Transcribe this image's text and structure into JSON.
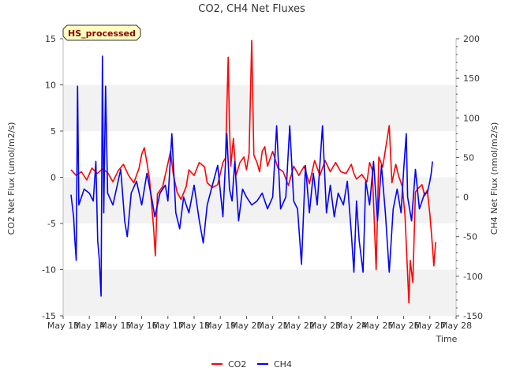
{
  "chart_data": {
    "type": "line",
    "title": "CO2, CH4 Net Fluxes",
    "badge": "HS_processed",
    "xlabel": "Time",
    "ylabel_left": "CO2 Net Flux (umol/m2/s)",
    "ylabel_right": "CH4 Net Flux (nmol/m2/s)",
    "xlim": [
      13,
      28
    ],
    "ylim_left": [
      -15,
      15
    ],
    "ylim_right": [
      -150,
      200
    ],
    "x_ticks": [
      13,
      14,
      15,
      16,
      17,
      18,
      19,
      20,
      21,
      22,
      23,
      24,
      25,
      26,
      27,
      28
    ],
    "x_tick_labels": [
      "May 13",
      "May 14",
      "May 15",
      "May 16",
      "May 17",
      "May 18",
      "May 19",
      "May 20",
      "May 21",
      "May 22",
      "May 23",
      "May 24",
      "May 25",
      "May 26",
      "May 27",
      "May 28"
    ],
    "y_ticks_left": [
      -15,
      -10,
      -5,
      0,
      5,
      10,
      15
    ],
    "y_tick_labels_left": [
      "-15",
      "-10",
      "-5",
      "0",
      "5",
      "10",
      "15"
    ],
    "y_ticks_right": [
      -150,
      -100,
      -50,
      0,
      50,
      100,
      150,
      200
    ],
    "y_tick_labels_right": [
      "-150",
      "-100",
      "-50",
      "0",
      "50",
      "100",
      "150",
      "200"
    ],
    "legend": [
      "CO2",
      "CH4"
    ],
    "series": [
      {
        "name": "CO2",
        "axis": "left",
        "color": "#ff0000",
        "points": [
          [
            13.3,
            0.8
          ],
          [
            13.5,
            0.2
          ],
          [
            13.7,
            0.6
          ],
          [
            13.9,
            -0.3
          ],
          [
            14.1,
            1.0
          ],
          [
            14.3,
            0.4
          ],
          [
            14.5,
            0.9
          ],
          [
            14.7,
            0.5
          ],
          [
            14.9,
            -0.5
          ],
          [
            15.1,
            0.7
          ],
          [
            15.3,
            1.4
          ],
          [
            15.5,
            0.2
          ],
          [
            15.7,
            -0.6
          ],
          [
            15.9,
            1.0
          ],
          [
            16.0,
            2.5
          ],
          [
            16.1,
            3.2
          ],
          [
            16.2,
            1.6
          ],
          [
            16.3,
            -0.3
          ],
          [
            16.45,
            -5.3
          ],
          [
            16.52,
            -8.5
          ],
          [
            16.6,
            -1.8
          ],
          [
            16.8,
            -1.0
          ],
          [
            17.0,
            1.5
          ],
          [
            17.1,
            2.8
          ],
          [
            17.2,
            0.4
          ],
          [
            17.35,
            -1.6
          ],
          [
            17.5,
            -2.4
          ],
          [
            17.7,
            -1.0
          ],
          [
            17.8,
            0.8
          ],
          [
            18.0,
            0.2
          ],
          [
            18.2,
            1.6
          ],
          [
            18.4,
            1.1
          ],
          [
            18.5,
            -0.6
          ],
          [
            18.7,
            -1.1
          ],
          [
            18.9,
            -0.8
          ],
          [
            19.0,
            0.4
          ],
          [
            19.1,
            1.6
          ],
          [
            19.2,
            2.1
          ],
          [
            19.3,
            13.0
          ],
          [
            19.35,
            5.5
          ],
          [
            19.4,
            1.2
          ],
          [
            19.5,
            4.2
          ],
          [
            19.6,
            0.2
          ],
          [
            19.75,
            1.6
          ],
          [
            19.9,
            2.2
          ],
          [
            20.0,
            0.8
          ],
          [
            20.1,
            2.6
          ],
          [
            20.2,
            14.8
          ],
          [
            20.28,
            2.4
          ],
          [
            20.4,
            1.6
          ],
          [
            20.5,
            0.6
          ],
          [
            20.6,
            2.8
          ],
          [
            20.7,
            3.3
          ],
          [
            20.8,
            1.2
          ],
          [
            21.0,
            2.8
          ],
          [
            21.2,
            1.0
          ],
          [
            21.4,
            0.6
          ],
          [
            21.6,
            -0.9
          ],
          [
            21.8,
            1.2
          ],
          [
            22.0,
            0.2
          ],
          [
            22.2,
            1.2
          ],
          [
            22.4,
            -0.7
          ],
          [
            22.6,
            1.8
          ],
          [
            22.8,
            0.2
          ],
          [
            23.0,
            1.8
          ],
          [
            23.2,
            0.6
          ],
          [
            23.4,
            1.6
          ],
          [
            23.6,
            0.6
          ],
          [
            23.8,
            0.4
          ],
          [
            24.0,
            1.4
          ],
          [
            24.1,
            0.4
          ],
          [
            24.2,
            -0.2
          ],
          [
            24.4,
            0.3
          ],
          [
            24.6,
            -0.5
          ],
          [
            24.7,
            1.6
          ],
          [
            24.8,
            0.8
          ],
          [
            24.95,
            -10.0
          ],
          [
            25.05,
            2.2
          ],
          [
            25.2,
            1.1
          ],
          [
            25.35,
            3.8
          ],
          [
            25.45,
            5.6
          ],
          [
            25.55,
            -0.6
          ],
          [
            25.7,
            1.4
          ],
          [
            25.8,
            0.2
          ],
          [
            25.95,
            -1.0
          ],
          [
            26.05,
            -4.2
          ],
          [
            26.15,
            -10.5
          ],
          [
            26.2,
            -13.6
          ],
          [
            26.25,
            -9.0
          ],
          [
            26.35,
            -11.4
          ],
          [
            26.45,
            -1.6
          ],
          [
            26.55,
            -1.2
          ],
          [
            26.7,
            -0.8
          ],
          [
            26.8,
            -2.0
          ],
          [
            26.9,
            -1.4
          ],
          [
            27.0,
            -4.0
          ],
          [
            27.1,
            -7.5
          ],
          [
            27.15,
            -9.6
          ],
          [
            27.22,
            -7.0
          ]
        ]
      },
      {
        "name": "CH4",
        "axis": "right",
        "color": "#0000ff",
        "points": [
          [
            13.3,
            3
          ],
          [
            13.4,
            -25
          ],
          [
            13.45,
            -55
          ],
          [
            13.5,
            -80
          ],
          [
            13.55,
            140
          ],
          [
            13.6,
            -10
          ],
          [
            13.8,
            10
          ],
          [
            14.0,
            5
          ],
          [
            14.15,
            -5
          ],
          [
            14.25,
            45
          ],
          [
            14.32,
            -55
          ],
          [
            14.38,
            -78
          ],
          [
            14.45,
            -125
          ],
          [
            14.5,
            178
          ],
          [
            14.55,
            -20
          ],
          [
            14.62,
            140
          ],
          [
            14.7,
            5
          ],
          [
            14.9,
            -10
          ],
          [
            15.1,
            20
          ],
          [
            15.2,
            35
          ],
          [
            15.35,
            -30
          ],
          [
            15.45,
            -50
          ],
          [
            15.6,
            5
          ],
          [
            15.8,
            20
          ],
          [
            16.0,
            -10
          ],
          [
            16.2,
            30
          ],
          [
            16.4,
            -5
          ],
          [
            16.5,
            -25
          ],
          [
            16.7,
            5
          ],
          [
            16.9,
            15
          ],
          [
            17.0,
            -5
          ],
          [
            17.15,
            80
          ],
          [
            17.3,
            -20
          ],
          [
            17.45,
            -40
          ],
          [
            17.6,
            0
          ],
          [
            17.8,
            -20
          ],
          [
            18.0,
            15
          ],
          [
            18.2,
            -30
          ],
          [
            18.35,
            -58
          ],
          [
            18.5,
            -10
          ],
          [
            18.7,
            15
          ],
          [
            18.9,
            40
          ],
          [
            19.1,
            -25
          ],
          [
            19.25,
            80
          ],
          [
            19.35,
            10
          ],
          [
            19.45,
            -5
          ],
          [
            19.55,
            45
          ],
          [
            19.7,
            -30
          ],
          [
            19.85,
            10
          ],
          [
            20.0,
            0
          ],
          [
            20.2,
            -10
          ],
          [
            20.4,
            -5
          ],
          [
            20.6,
            5
          ],
          [
            20.8,
            -15
          ],
          [
            21.0,
            0
          ],
          [
            21.15,
            90
          ],
          [
            21.3,
            -15
          ],
          [
            21.5,
            0
          ],
          [
            21.65,
            90
          ],
          [
            21.8,
            -5
          ],
          [
            21.95,
            -15
          ],
          [
            22.1,
            -85
          ],
          [
            22.25,
            40
          ],
          [
            22.4,
            -20
          ],
          [
            22.55,
            30
          ],
          [
            22.7,
            -10
          ],
          [
            22.9,
            90
          ],
          [
            23.05,
            -20
          ],
          [
            23.2,
            15
          ],
          [
            23.35,
            -25
          ],
          [
            23.5,
            5
          ],
          [
            23.7,
            -10
          ],
          [
            23.85,
            20
          ],
          [
            24.0,
            -45
          ],
          [
            24.1,
            -95
          ],
          [
            24.2,
            -5
          ],
          [
            24.3,
            -55
          ],
          [
            24.45,
            -95
          ],
          [
            24.55,
            20
          ],
          [
            24.7,
            -10
          ],
          [
            24.85,
            45
          ],
          [
            25.0,
            -30
          ],
          [
            25.15,
            40
          ],
          [
            25.3,
            -20
          ],
          [
            25.45,
            -95
          ],
          [
            25.6,
            -15
          ],
          [
            25.75,
            10
          ],
          [
            25.9,
            -20
          ],
          [
            26.0,
            35
          ],
          [
            26.1,
            80
          ],
          [
            26.15,
            0
          ],
          [
            26.3,
            -30
          ],
          [
            26.45,
            35
          ],
          [
            26.6,
            -15
          ],
          [
            26.8,
            5
          ],
          [
            26.9,
            5
          ],
          [
            27.0,
            20
          ],
          [
            27.05,
            30
          ],
          [
            27.1,
            45
          ]
        ]
      }
    ]
  }
}
